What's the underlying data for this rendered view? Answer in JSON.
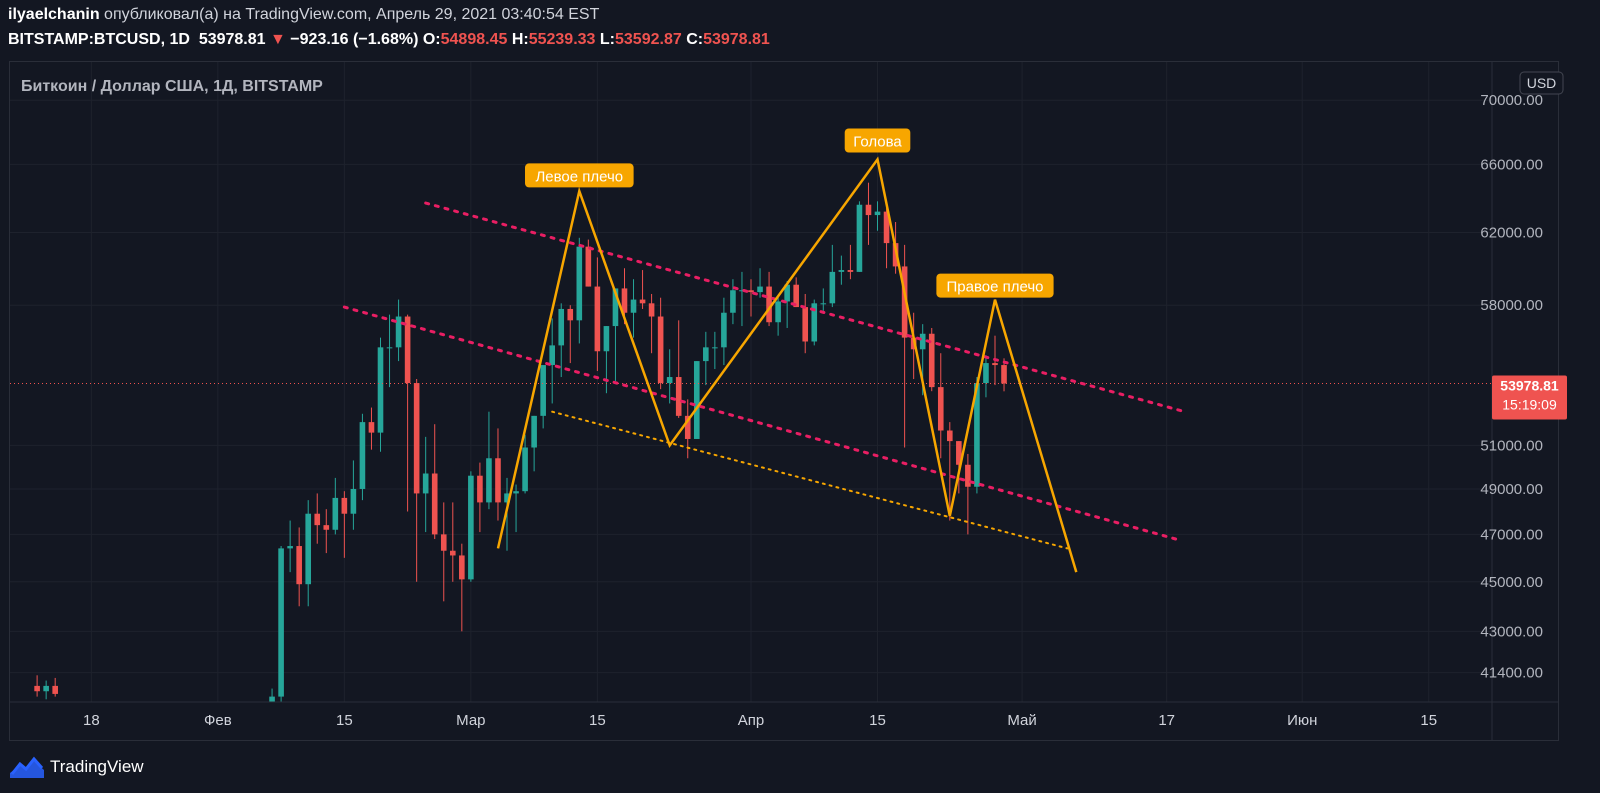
{
  "header": {
    "author": "ilyaelchanin",
    "published_text": "опубликовал(а) на TradingView.com, Апрель 29, 2021 03:40:54 EST",
    "symbol": "BITSTAMP:BTCUSD, 1D",
    "last": "53978.81",
    "change_arrow": "▼",
    "change": "−923.16 (−1.68%)",
    "o_label": "O:",
    "o_value": "54898.45",
    "h_label": "H:",
    "h_value": "55239.33",
    "l_label": "L:",
    "l_value": "53592.87",
    "c_label": "C:",
    "c_value": "53978.81"
  },
  "footer": {
    "brand": "TradingView"
  },
  "colors": {
    "up": "#26a69a",
    "down": "#ef5350",
    "pattern": "#f7a600",
    "trend": "#e91e63",
    "support": "#f7a600",
    "background": "#131722",
    "grid": "#1e222d"
  },
  "chart_data": {
    "type": "candlestick",
    "title": "Биткоин / Доллар США, 1Д, BITSTAMP",
    "currency_badge": "USD",
    "price_scale": "log",
    "ylim": [
      40300,
      72500
    ],
    "xlim": [
      "2021-01-09",
      "2021-06-22"
    ],
    "y_ticks": [
      "70000.00",
      "66000.00",
      "62000.00",
      "58000.00",
      "51000.00",
      "49000.00",
      "47000.00",
      "45000.00",
      "43000.00",
      "41400.00"
    ],
    "x_ticks": [
      {
        "date": "2021-01-18",
        "label": "18"
      },
      {
        "date": "2021-02-01",
        "label": "Фев"
      },
      {
        "date": "2021-02-15",
        "label": "15"
      },
      {
        "date": "2021-03-01",
        "label": "Мар"
      },
      {
        "date": "2021-03-15",
        "label": "15"
      },
      {
        "date": "2021-04-01",
        "label": "Апр"
      },
      {
        "date": "2021-04-15",
        "label": "15"
      },
      {
        "date": "2021-05-01",
        "label": "Май"
      },
      {
        "date": "2021-05-17",
        "label": "17"
      },
      {
        "date": "2021-06-01",
        "label": "Июн"
      },
      {
        "date": "2021-06-15",
        "label": "15"
      }
    ],
    "last_price": "53978.81",
    "countdown": "15:19:09",
    "candles": [
      [
        "2021-01-12",
        40900,
        41300,
        40500,
        40700
      ],
      [
        "2021-01-13",
        40700,
        41100,
        40400,
        40900
      ],
      [
        "2021-01-14",
        40900,
        41200,
        40500,
        40600
      ],
      [
        "2021-02-07",
        40200,
        40800,
        40000,
        40500
      ],
      [
        "2021-02-08",
        40500,
        46500,
        40300,
        46400
      ],
      [
        "2021-02-09",
        46400,
        47600,
        45400,
        46500
      ],
      [
        "2021-02-10",
        46500,
        47300,
        44000,
        44900
      ],
      [
        "2021-02-11",
        44900,
        48500,
        44000,
        47900
      ],
      [
        "2021-02-12",
        47900,
        48800,
        46600,
        47400
      ],
      [
        "2021-02-13",
        47400,
        48100,
        46200,
        47200
      ],
      [
        "2021-02-14",
        47200,
        49500,
        47000,
        48600
      ],
      [
        "2021-02-15",
        48600,
        48900,
        46000,
        47900
      ],
      [
        "2021-02-16",
        47900,
        50300,
        47200,
        49000
      ],
      [
        "2021-02-17",
        49000,
        52500,
        48500,
        52100
      ],
      [
        "2021-02-18",
        52100,
        52800,
        50800,
        51600
      ],
      [
        "2021-02-19",
        51600,
        56300,
        50700,
        55800
      ],
      [
        "2021-02-20",
        55800,
        57500,
        53800,
        55800
      ],
      [
        "2021-02-21",
        55800,
        58300,
        55100,
        57400
      ],
      [
        "2021-02-22",
        57400,
        57500,
        48000,
        54000
      ],
      [
        "2021-02-23",
        54000,
        54200,
        45000,
        48800
      ],
      [
        "2021-02-24",
        48800,
        51400,
        47100,
        49700
      ],
      [
        "2021-02-25",
        49700,
        52000,
        46800,
        47000
      ],
      [
        "2021-02-26",
        47000,
        48400,
        44200,
        46300
      ],
      [
        "2021-02-27",
        46300,
        48400,
        45000,
        46100
      ],
      [
        "2021-02-28",
        46100,
        46600,
        43000,
        45100
      ],
      [
        "2021-03-01",
        45100,
        49800,
        45000,
        49600
      ],
      [
        "2021-03-02",
        49600,
        50200,
        47100,
        48400
      ],
      [
        "2021-03-03",
        48400,
        52600,
        48100,
        50400
      ],
      [
        "2021-03-04",
        50400,
        51800,
        47600,
        48400
      ],
      [
        "2021-03-05",
        48400,
        49500,
        46300,
        48800
      ],
      [
        "2021-03-06",
        48800,
        49200,
        47100,
        48900
      ],
      [
        "2021-03-07",
        48900,
        51500,
        48800,
        50900
      ],
      [
        "2021-03-08",
        50900,
        52400,
        49800,
        52400
      ],
      [
        "2021-03-09",
        52400,
        54800,
        51800,
        54900
      ],
      [
        "2021-03-10",
        54900,
        57300,
        53000,
        55900
      ],
      [
        "2021-03-11",
        55900,
        58100,
        54300,
        57800
      ],
      [
        "2021-03-12",
        57800,
        58000,
        55000,
        57200
      ],
      [
        "2021-03-13",
        57200,
        61700,
        56000,
        61200
      ],
      [
        "2021-03-14",
        61200,
        61600,
        59000,
        59000
      ],
      [
        "2021-03-15",
        59000,
        60600,
        54600,
        55600
      ],
      [
        "2021-03-16",
        55600,
        56900,
        53500,
        56900
      ],
      [
        "2021-03-17",
        56900,
        58900,
        54100,
        58900
      ],
      [
        "2021-03-18",
        58900,
        60000,
        57000,
        57600
      ],
      [
        "2021-03-19",
        57600,
        59400,
        56300,
        58300
      ],
      [
        "2021-03-20",
        58300,
        59900,
        57800,
        58100
      ],
      [
        "2021-03-21",
        58100,
        58600,
        55500,
        57400
      ],
      [
        "2021-03-22",
        57400,
        58400,
        53700,
        54000
      ],
      [
        "2021-03-23",
        54000,
        55700,
        53000,
        54300
      ],
      [
        "2021-03-24",
        54300,
        57200,
        52300,
        52400
      ],
      [
        "2021-03-25",
        52400,
        53200,
        50400,
        51300
      ],
      [
        "2021-03-26",
        51300,
        55100,
        51300,
        55100
      ],
      [
        "2021-03-27",
        55100,
        56600,
        53900,
        55800
      ],
      [
        "2021-03-28",
        55800,
        56600,
        54700,
        55800
      ],
      [
        "2021-03-29",
        55800,
        58400,
        54900,
        57600
      ],
      [
        "2021-03-30",
        57600,
        59400,
        57000,
        58800
      ],
      [
        "2021-03-31",
        58800,
        59800,
        56900,
        58800
      ],
      [
        "2021-04-01",
        58800,
        59400,
        57400,
        58700
      ],
      [
        "2021-04-02",
        58700,
        60000,
        58400,
        59000
      ],
      [
        "2021-04-03",
        59000,
        59800,
        56900,
        57100
      ],
      [
        "2021-04-04",
        57100,
        58500,
        56400,
        58200
      ],
      [
        "2021-04-05",
        58200,
        59300,
        56800,
        59100
      ],
      [
        "2021-04-06",
        59100,
        59500,
        57900,
        57900
      ],
      [
        "2021-04-07",
        57900,
        58600,
        55500,
        56100
      ],
      [
        "2021-04-08",
        56100,
        58300,
        55900,
        58100
      ],
      [
        "2021-04-09",
        58100,
        58900,
        57700,
        58100
      ],
      [
        "2021-04-10",
        58100,
        61300,
        57900,
        59800
      ],
      [
        "2021-04-11",
        59800,
        60700,
        59100,
        59900
      ],
      [
        "2021-04-12",
        59900,
        61300,
        59400,
        59800
      ],
      [
        "2021-04-13",
        59800,
        63800,
        59800,
        63600
      ],
      [
        "2021-04-14",
        63600,
        64900,
        61300,
        63000
      ],
      [
        "2021-04-15",
        63000,
        63800,
        62100,
        63200
      ],
      [
        "2021-04-16",
        63200,
        63500,
        60000,
        61400
      ],
      [
        "2021-04-17",
        61400,
        62600,
        59700,
        60100
      ],
      [
        "2021-04-18",
        60100,
        61300,
        50900,
        56300
      ],
      [
        "2021-04-19",
        56300,
        57600,
        54200,
        55700
      ],
      [
        "2021-04-20",
        55700,
        57000,
        53400,
        56500
      ],
      [
        "2021-04-21",
        56500,
        56800,
        53600,
        53800
      ],
      [
        "2021-04-22",
        53800,
        55500,
        50400,
        51700
      ],
      [
        "2021-04-23",
        51700,
        52100,
        47600,
        51200
      ],
      [
        "2021-04-24",
        51200,
        51200,
        48800,
        50100
      ],
      [
        "2021-04-25",
        50100,
        50600,
        47000,
        49100
      ],
      [
        "2021-04-26",
        49100,
        54300,
        48800,
        54000
      ],
      [
        "2021-04-27",
        54000,
        55400,
        53300,
        55000
      ],
      [
        "2021-04-28",
        55000,
        56400,
        53900,
        54900
      ],
      [
        "2021-04-29",
        54900,
        55240,
        53593,
        53979
      ]
    ],
    "annotations": [
      {
        "text": "Левое плечо",
        "date": "2021-03-13",
        "price": 64500
      },
      {
        "text": "Голова",
        "date": "2021-04-15",
        "price": 66600
      },
      {
        "text": "Правое плечо",
        "date": "2021-04-28",
        "price": 58300
      }
    ],
    "hs_pattern": [
      [
        "2021-03-04",
        46400
      ],
      [
        "2021-03-13",
        64400
      ],
      [
        "2021-03-23",
        51000
      ],
      [
        "2021-04-15",
        66300
      ],
      [
        "2021-04-23",
        47800
      ],
      [
        "2021-04-28",
        58300
      ],
      [
        "2021-05-07",
        45400
      ]
    ],
    "trend_lines": [
      {
        "name": "upper",
        "from": [
          "2021-02-24",
          63700
        ],
        "to": [
          "2021-05-19",
          52600
        ]
      },
      {
        "name": "lower",
        "from": [
          "2021-02-15",
          57900
        ],
        "to": [
          "2021-05-18",
          46800
        ]
      }
    ],
    "support_line": {
      "from": [
        "2021-03-10",
        52600
      ],
      "to": [
        "2021-05-06",
        46400
      ]
    }
  }
}
